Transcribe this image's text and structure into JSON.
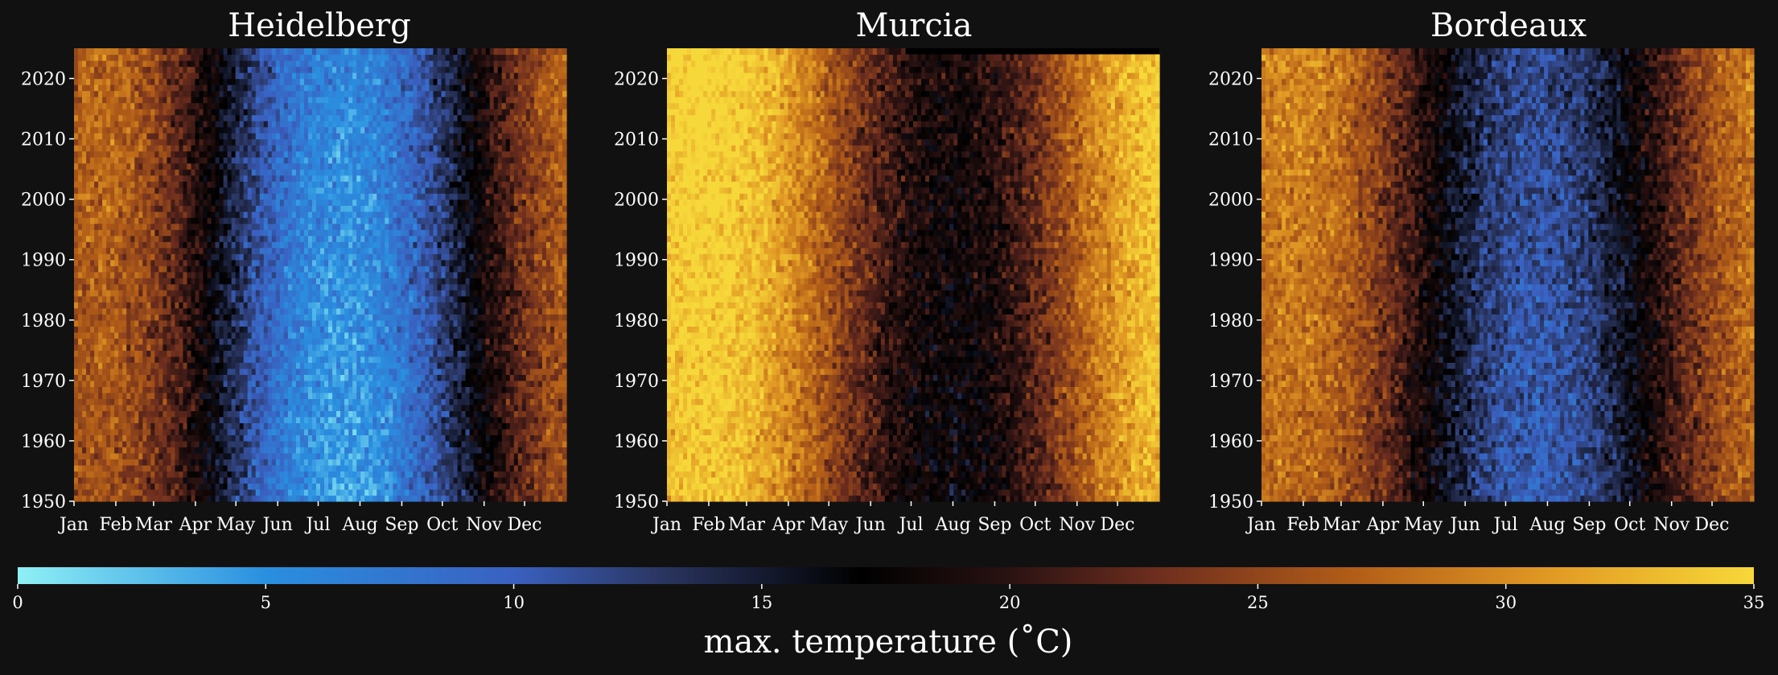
{
  "figure": {
    "background": "#111111",
    "colorbar_label": "max. temperature (˚C)"
  },
  "chart_data": {
    "type": "heatmap",
    "years": [
      1950,
      2024
    ],
    "y_ticks": [
      1950,
      1960,
      1970,
      1980,
      1990,
      2000,
      2010,
      2020
    ],
    "month_labels": [
      "Jan",
      "Feb",
      "Mar",
      "Apr",
      "May",
      "Jun",
      "Jul",
      "Aug",
      "Sep",
      "Oct",
      "Nov",
      "Dec"
    ],
    "month_start_day": [
      1,
      32,
      60,
      91,
      121,
      152,
      182,
      213,
      244,
      274,
      305,
      335
    ],
    "colorbar": {
      "label": "max. temperature (˚C)",
      "range": [
        0,
        35
      ],
      "ticks": [
        0,
        5,
        10,
        15,
        20,
        25,
        30,
        35
      ],
      "colors": [
        {
          "value": 0,
          "color": "#8ff0f5"
        },
        {
          "value": 5,
          "color": "#2a8fe0"
        },
        {
          "value": 10,
          "color": "#3a60c0"
        },
        {
          "value": 13,
          "color": "#2a3560"
        },
        {
          "value": 17,
          "color": "#000000"
        },
        {
          "value": 20,
          "color": "#2a1212"
        },
        {
          "value": 23,
          "color": "#6e2e1e"
        },
        {
          "value": 27,
          "color": "#b35e18"
        },
        {
          "value": 31,
          "color": "#e29b24"
        },
        {
          "value": 35,
          "color": "#f7d83a"
        }
      ]
    },
    "panels": [
      {
        "title": "Heidelberg",
        "winter_max": 4,
        "summer_max": 26,
        "peak_day": 200
      },
      {
        "title": "Murcia",
        "winter_max": 17,
        "summer_max": 34,
        "peak_day": 210
      },
      {
        "title": "Bordeaux",
        "winter_max": 10,
        "summer_max": 28,
        "peak_day": 205
      }
    ]
  }
}
